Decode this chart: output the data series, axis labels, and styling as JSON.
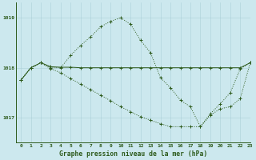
{
  "title": "Graphe pression niveau de la mer (hPa)",
  "background_color": "#cce8ee",
  "line_color": "#2d5a1b",
  "xlim": [
    -0.5,
    23
  ],
  "ylim": [
    1016.5,
    1019.3
  ],
  "yticks": [
    1017,
    1018,
    1019
  ],
  "xticks": [
    0,
    1,
    2,
    3,
    4,
    5,
    6,
    7,
    8,
    9,
    10,
    11,
    12,
    13,
    14,
    15,
    16,
    17,
    18,
    19,
    20,
    21,
    22,
    23
  ],
  "series1_x": [
    0,
    1,
    2,
    3,
    4,
    5,
    6,
    7,
    8,
    9,
    10,
    11,
    12,
    13,
    14,
    15,
    16,
    17,
    18,
    19,
    20,
    21,
    22,
    23
  ],
  "series1_y": [
    1017.75,
    1018.0,
    1018.1,
    1018.0,
    1018.0,
    1018.25,
    1018.45,
    1018.62,
    1018.82,
    1018.93,
    1019.0,
    1018.87,
    1018.55,
    1018.3,
    1017.8,
    1017.6,
    1017.35,
    1017.22,
    1016.82,
    1017.08,
    1017.28,
    1017.5,
    1017.98,
    1018.1
  ],
  "series2_x": [
    0,
    1,
    2,
    3,
    4,
    5,
    6,
    7,
    8,
    9,
    10,
    11,
    12,
    13,
    14,
    15,
    16,
    17,
    18,
    19,
    20,
    21,
    22,
    23
  ],
  "series2_y": [
    1017.75,
    1018.0,
    1018.1,
    1018.02,
    1018.01,
    1018.01,
    1018.0,
    1018.0,
    1018.0,
    1018.0,
    1018.0,
    1018.0,
    1018.0,
    1018.0,
    1018.0,
    1018.0,
    1018.0,
    1018.0,
    1018.0,
    1018.0,
    1018.0,
    1018.0,
    1018.0,
    1018.1
  ],
  "series3_x": [
    0,
    1,
    2,
    3,
    4,
    5,
    6,
    7,
    8,
    9,
    10,
    11,
    12,
    13,
    14,
    15,
    16,
    17,
    18,
    19,
    20,
    21,
    22,
    23
  ],
  "series3_y": [
    1017.75,
    1018.0,
    1018.1,
    1017.98,
    1017.9,
    1017.78,
    1017.67,
    1017.56,
    1017.45,
    1017.34,
    1017.22,
    1017.12,
    1017.02,
    1016.95,
    1016.88,
    1016.82,
    1016.82,
    1016.82,
    1016.82,
    1017.05,
    1017.18,
    1017.22,
    1017.38,
    1018.1
  ],
  "grid_color": "#aacfd8",
  "markersize": 1.8,
  "linewidth": 0.7
}
